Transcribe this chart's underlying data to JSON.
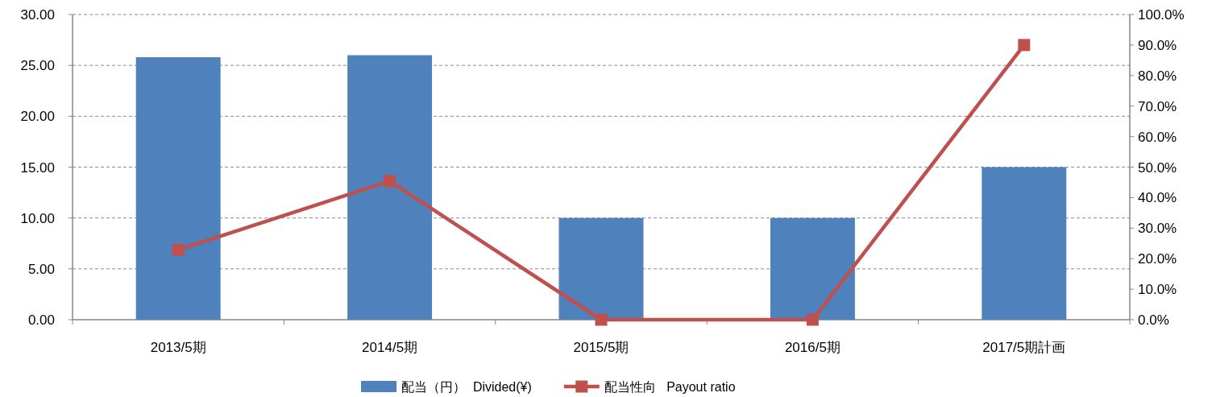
{
  "chart_data": {
    "type": "bar",
    "categories": [
      "2013/5期",
      "2014/5期",
      "2015/5期",
      "2016/5期",
      "2017/5期計画"
    ],
    "series": [
      {
        "name": "配当（円）  Divided(¥)",
        "color": "#4f81bd",
        "values": [
          25.8,
          26.0,
          10.0,
          10.0,
          15.0
        ]
      },
      {
        "name": "配当性向   Payout ratio",
        "type": "line",
        "axis": "y2",
        "color": "#c0504d",
        "marker": "square",
        "values": [
          22.9,
          45.4,
          0,
          0,
          90
        ]
      }
    ],
    "ylim": [
      0,
      30
    ],
    "yticks": [
      {
        "value": 0,
        "label": "0.00"
      },
      {
        "value": 5,
        "label": "5.00"
      },
      {
        "value": 10,
        "label": "10.00"
      },
      {
        "value": 15,
        "label": "15.00"
      },
      {
        "value": 20,
        "label": "20.00"
      },
      {
        "value": 25,
        "label": "25.00"
      },
      {
        "value": 30,
        "label": "30.00"
      }
    ],
    "y2lim": [
      0,
      100
    ],
    "y2ticks": [
      {
        "value": 0,
        "label": "0.0%"
      },
      {
        "value": 10,
        "label": "10.0%"
      },
      {
        "value": 20,
        "label": "20.0%"
      },
      {
        "value": 30,
        "label": "30.0%"
      },
      {
        "value": 40,
        "label": "40.0%"
      },
      {
        "value": 50,
        "label": "50.0%"
      },
      {
        "value": 60,
        "label": "60.0%"
      },
      {
        "value": 70,
        "label": "70.0%"
      },
      {
        "value": 80,
        "label": "80.0%"
      },
      {
        "value": 90,
        "label": "90.0%"
      },
      {
        "value": 100,
        "label": "100.0%"
      }
    ],
    "grid": "y",
    "legend": "bottom"
  }
}
